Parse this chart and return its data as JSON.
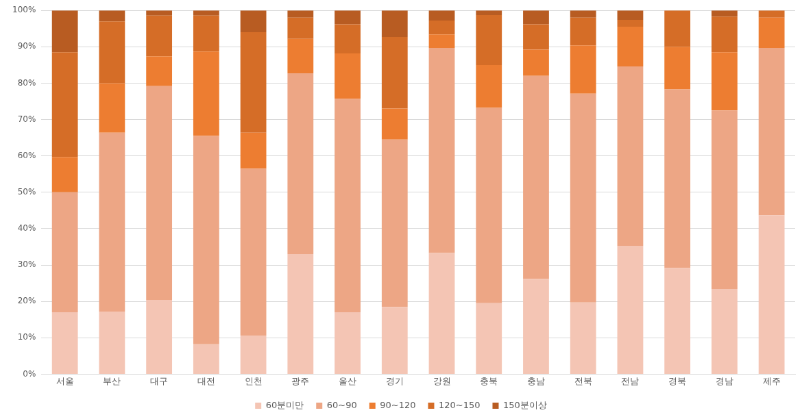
{
  "chart_data": {
    "type": "bar",
    "stacked": true,
    "categories": [
      "서울",
      "부산",
      "대구",
      "대전",
      "인천",
      "광주",
      "울산",
      "경기",
      "강원",
      "충북",
      "충남",
      "전북",
      "전남",
      "경북",
      "경남",
      "제주"
    ],
    "series": [
      {
        "name": "60분미만",
        "color": "#f4c5b4",
        "values": [
          17,
          17.2,
          20.4,
          8.2,
          10.6,
          33,
          17,
          18.5,
          33.3,
          19.5,
          26.2,
          19.7,
          35.3,
          29.2,
          23.4,
          43.7
        ]
      },
      {
        "name": "60~90",
        "color": "#eda685",
        "values": [
          33,
          49.2,
          58.8,
          57.3,
          45.9,
          49.7,
          58.7,
          46,
          56.4,
          53.7,
          55.8,
          57.4,
          49.3,
          49.1,
          49.1,
          46
        ]
      },
      {
        "name": "90~120",
        "color": "#ed7d31",
        "values": [
          9.7,
          13.6,
          8.2,
          23.2,
          9.9,
          9.5,
          12.5,
          8.5,
          3.7,
          11.8,
          7.2,
          13.3,
          10.9,
          11.7,
          16,
          8.3
        ]
      },
      {
        "name": "120~150",
        "color": "#d56d27",
        "values": [
          28.8,
          17,
          11.2,
          9.9,
          27.6,
          5.8,
          8,
          19.7,
          3.8,
          13.7,
          7,
          7.6,
          1.9,
          10,
          9.8,
          2
        ]
      },
      {
        "name": "150분이상",
        "color": "#b85c22",
        "values": [
          11.5,
          3,
          1.4,
          1.4,
          6,
          2,
          3.8,
          7.3,
          2.8,
          1.3,
          3.8,
          2,
          2.6,
          0,
          1.7,
          0
        ]
      }
    ],
    "ylim": [
      0,
      100
    ],
    "yticks": [
      {
        "value": 0,
        "label": "0%"
      },
      {
        "value": 10,
        "label": "10%"
      },
      {
        "value": 20,
        "label": "20%"
      },
      {
        "value": 30,
        "label": "30%"
      },
      {
        "value": 40,
        "label": "40%"
      },
      {
        "value": 50,
        "label": "50%"
      },
      {
        "value": 60,
        "label": "60%"
      },
      {
        "value": 70,
        "label": "70%"
      },
      {
        "value": 80,
        "label": "80%"
      },
      {
        "value": 90,
        "label": "90%"
      },
      {
        "value": 100,
        "label": "100%"
      }
    ],
    "grid": "y",
    "legend": "bottom"
  }
}
